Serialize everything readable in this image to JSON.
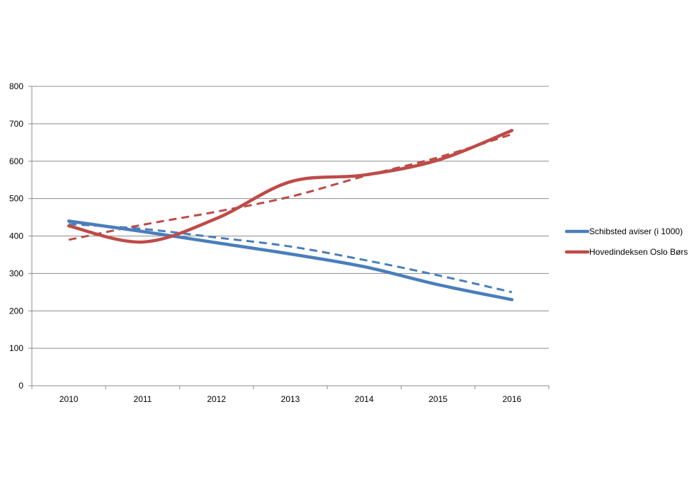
{
  "chart_data": {
    "type": "line",
    "title": "",
    "xlabel": "",
    "ylabel": "",
    "categories": [
      "2010",
      "2011",
      "2012",
      "2013",
      "2014",
      "2015",
      "2016"
    ],
    "ylim": [
      0,
      800
    ],
    "yticks": [
      "0",
      "100",
      "200",
      "300",
      "400",
      "500",
      "600",
      "700",
      "800"
    ],
    "grid": true,
    "legend_position": "right",
    "series": [
      {
        "name": "Schibsted aviser (i 1000)",
        "color": "#4a7ebb",
        "values": [
          440,
          412,
          382,
          352,
          318,
          270,
          230
        ],
        "trendline": [
          432,
          419,
          396,
          372,
          336,
          295,
          250
        ]
      },
      {
        "name": "Hovedindeksen Oslo Børs",
        "color": "#be4b48",
        "values": [
          427,
          384,
          447,
          545,
          563,
          603,
          682
        ],
        "trendline": [
          390,
          430,
          465,
          505,
          560,
          610,
          672
        ]
      }
    ]
  }
}
